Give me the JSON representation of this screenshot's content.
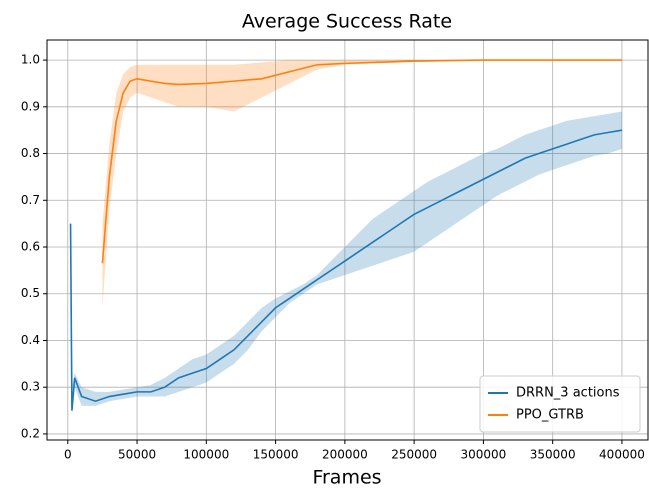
{
  "chart_data": {
    "type": "line",
    "title": "Average Success Rate",
    "x_label": "Frames",
    "xlim": [
      -15000,
      418800
    ],
    "ylim": [
      0.187,
      1.043
    ],
    "xticks": [
      0,
      50000,
      100000,
      150000,
      200000,
      250000,
      300000,
      350000,
      400000
    ],
    "yticks": [
      0.2,
      0.3,
      0.4,
      0.5,
      0.6,
      0.7,
      0.8,
      0.9,
      {
        "value": 1,
        "label": "1.0"
      }
    ],
    "grid": true,
    "legend": "lower right",
    "series": [
      {
        "name": "DRRN_3 actions",
        "color": "#1f77b4",
        "x": [
          2000,
          3000,
          5000,
          10000,
          20000,
          30000,
          40000,
          50000,
          60000,
          70000,
          80000,
          90000,
          100000,
          110000,
          120000,
          130000,
          140000,
          150000,
          160000,
          170000,
          180000,
          190000,
          200000,
          210000,
          220000,
          230000,
          240000,
          250000,
          260000,
          270000,
          280000,
          290000,
          300000,
          310000,
          320000,
          330000,
          340000,
          350000,
          360000,
          370000,
          380000,
          390000,
          400000
        ],
        "values": [
          0.65,
          0.25,
          0.32,
          0.28,
          0.27,
          0.28,
          0.285,
          0.29,
          0.29,
          0.3,
          0.32,
          0.33,
          0.34,
          0.36,
          0.38,
          0.41,
          0.44,
          0.47,
          0.49,
          0.51,
          0.53,
          0.55,
          0.57,
          0.59,
          0.61,
          0.63,
          0.65,
          0.67,
          0.685,
          0.7,
          0.715,
          0.73,
          0.745,
          0.76,
          0.775,
          0.79,
          0.8,
          0.81,
          0.82,
          0.83,
          0.84,
          0.845,
          0.85
        ],
        "lower": [
          0.45,
          0.24,
          0.3,
          0.26,
          0.26,
          0.27,
          0.275,
          0.28,
          0.28,
          0.28,
          0.29,
          0.3,
          0.31,
          0.33,
          0.35,
          0.38,
          0.42,
          0.45,
          0.48,
          0.5,
          0.52,
          0.53,
          0.54,
          0.55,
          0.56,
          0.57,
          0.58,
          0.59,
          0.61,
          0.63,
          0.65,
          0.67,
          0.69,
          0.71,
          0.725,
          0.74,
          0.755,
          0.765,
          0.775,
          0.785,
          0.795,
          0.8,
          0.81
        ],
        "upper": [
          0.65,
          0.3,
          0.33,
          0.3,
          0.29,
          0.29,
          0.295,
          0.3,
          0.305,
          0.32,
          0.34,
          0.36,
          0.37,
          0.39,
          0.41,
          0.44,
          0.47,
          0.49,
          0.505,
          0.52,
          0.54,
          0.57,
          0.6,
          0.63,
          0.66,
          0.68,
          0.7,
          0.72,
          0.74,
          0.755,
          0.77,
          0.785,
          0.8,
          0.81,
          0.825,
          0.84,
          0.85,
          0.86,
          0.87,
          0.875,
          0.88,
          0.885,
          0.89
        ]
      },
      {
        "name": "PPO_GTRB",
        "color": "#ff7f0e",
        "x": [
          25000,
          30000,
          35000,
          40000,
          45000,
          50000,
          60000,
          70000,
          80000,
          100000,
          120000,
          140000,
          160000,
          180000,
          200000,
          250000,
          300000,
          400000
        ],
        "values": [
          0.565,
          0.75,
          0.87,
          0.93,
          0.955,
          0.96,
          0.955,
          0.95,
          0.948,
          0.95,
          0.955,
          0.96,
          0.975,
          0.99,
          0.993,
          0.998,
          1,
          1
        ],
        "lower": [
          0.47,
          0.68,
          0.8,
          0.89,
          0.92,
          0.93,
          0.92,
          0.91,
          0.9,
          0.9,
          0.89,
          0.92,
          0.95,
          0.98,
          0.99,
          0.996,
          0.999,
          0.999
        ],
        "upper": [
          0.65,
          0.82,
          0.93,
          0.97,
          0.985,
          0.99,
          0.99,
          0.99,
          0.99,
          0.99,
          0.99,
          0.995,
          1,
          1,
          1,
          1,
          1,
          1
        ]
      }
    ]
  }
}
